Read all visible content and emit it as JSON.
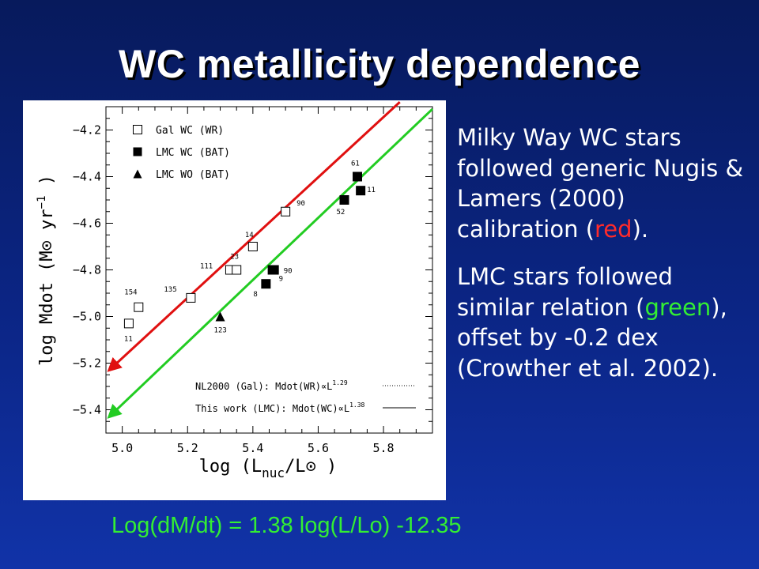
{
  "slide": {
    "title": "WC metallicity dependence",
    "formula": "Log(dM/dt) = 1.38 log(L/Lo) -12.35",
    "bullet1": {
      "pre": "Milky Way WC stars followed generic Nugis & Lamers (2000) calibration (",
      "highlight": "red",
      "post": ")."
    },
    "bullet2": {
      "pre": "LMC stars followed similar relation (",
      "highlight": "green",
      "post": "), offset by -0.2 dex (Crowther et al. 2002)."
    }
  },
  "colors": {
    "red_line": "#e01010",
    "green_line": "#22cc22",
    "highlight_red": "#ff2b2b",
    "highlight_green": "#33ee33"
  },
  "chart_data": {
    "type": "scatter",
    "xlabel": {
      "pre": "log (L",
      "sub": "nuc",
      "mid": "/L",
      "odot": "⊙",
      "post": ")"
    },
    "ylabel": {
      "pre": "log Mdot (M",
      "odot": "⊙",
      "mid": " yr",
      "sup": "−1",
      "post": ")"
    },
    "xlim": [
      4.95,
      5.95
    ],
    "ylim": [
      -5.5,
      -4.1
    ],
    "xticks": [
      5.0,
      5.2,
      5.4,
      5.6,
      5.8
    ],
    "xtick_labels": [
      "5.0",
      "5.2",
      "5.4",
      "5.6",
      "5.8"
    ],
    "yticks": [
      -4.2,
      -4.4,
      -4.6,
      -4.8,
      -5.0,
      -5.2,
      -5.4
    ],
    "ytick_labels": [
      "−4.2",
      "−4.4",
      "−4.6",
      "−4.8",
      "−5.0",
      "−5.2",
      "−5.4"
    ],
    "legend_position": "top-left",
    "legend": [
      {
        "marker": "open-square",
        "label": "Gal WC (WR)"
      },
      {
        "marker": "filled-square",
        "label": "LMC WC (BAT)"
      },
      {
        "marker": "filled-triangle",
        "label": "LMC WO (BAT)"
      }
    ],
    "series": [
      {
        "name": "Gal WC (WR)",
        "marker": "open-square",
        "points": [
          {
            "x": 5.02,
            "y": -5.03,
            "label": "11"
          },
          {
            "x": 5.05,
            "y": -4.96,
            "label": "154"
          },
          {
            "x": 5.21,
            "y": -4.92,
            "label": "135"
          },
          {
            "x": 5.33,
            "y": -4.8,
            "label": "111"
          },
          {
            "x": 5.35,
            "y": -4.8,
            "label": "23"
          },
          {
            "x": 5.4,
            "y": -4.7,
            "label": "14"
          },
          {
            "x": 5.5,
            "y": -4.55,
            "label": "90"
          }
        ]
      },
      {
        "name": "LMC WC (BAT)",
        "marker": "filled-square",
        "points": [
          {
            "x": 5.44,
            "y": -4.86,
            "label": "8"
          },
          {
            "x": 5.46,
            "y": -4.8,
            "label": "9"
          },
          {
            "x": 5.465,
            "y": -4.8,
            "label": "90"
          },
          {
            "x": 5.68,
            "y": -4.5,
            "label": "52"
          },
          {
            "x": 5.72,
            "y": -4.4,
            "label": "61"
          },
          {
            "x": 5.73,
            "y": -4.46,
            "label": "11"
          }
        ]
      },
      {
        "name": "LMC WO (BAT)",
        "marker": "filled-triangle",
        "points": [
          {
            "x": 5.3,
            "y": -5.0,
            "label": "123"
          }
        ]
      }
    ],
    "fit_lines": [
      {
        "label": "NL2000 (Gal): Mdot(WR)∝L",
        "exponent": "1.29",
        "style": "dotted",
        "x": [
          4.96,
          5.85
        ],
        "y": [
          -5.23,
          -4.08
        ]
      },
      {
        "label": "This work (LMC): Mdot(WC)∝L",
        "exponent": "1.38",
        "style": "solid",
        "x": [
          4.96,
          5.95
        ],
        "y": [
          -5.43,
          -4.11
        ]
      }
    ]
  }
}
